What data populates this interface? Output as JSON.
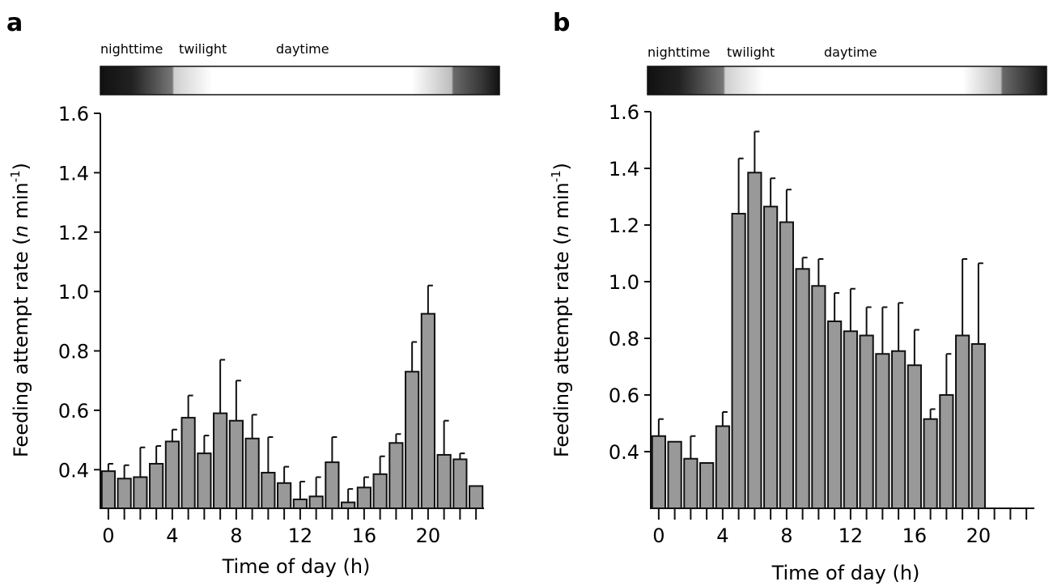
{
  "phases": [
    "nighttime",
    "twilight",
    "daytime"
  ],
  "chart_data": [
    {
      "type": "bar",
      "panel": "a",
      "xlabel": "Time of day (h)",
      "ylabel": "Feeding attempt rate (n min-1)",
      "ylabel_parts": {
        "pre": "Feeding attempt rate (",
        "italic": "n",
        "mid": " min",
        "sup": "-1",
        "post": ")"
      },
      "ylim": [
        0.27,
        1.6
      ],
      "yticks": [
        "0.4",
        "0.6",
        "0.8",
        "1.0",
        "1.2",
        "1.4",
        "1.6"
      ],
      "xticks": [
        "0",
        "4",
        "8",
        "12",
        "16",
        "20"
      ],
      "hours": [
        0,
        1,
        2,
        3,
        4,
        5,
        6,
        7,
        8,
        9,
        10,
        11,
        12,
        13,
        14,
        15,
        16,
        17,
        18,
        19,
        20,
        21,
        22,
        23
      ],
      "values": [
        0.395,
        0.37,
        0.375,
        0.42,
        0.495,
        0.575,
        0.455,
        0.59,
        0.565,
        0.505,
        0.39,
        0.355,
        0.3,
        0.31,
        0.425,
        0.29,
        0.34,
        0.385,
        0.49,
        0.73,
        0.925,
        0.45,
        0.435,
        0.345
      ],
      "errors": [
        0.025,
        0.045,
        0.1,
        0.06,
        0.04,
        0.075,
        0.06,
        0.18,
        0.135,
        0.08,
        0.12,
        0.055,
        0.06,
        0.065,
        0.085,
        0.045,
        0.035,
        0.06,
        0.03,
        0.1,
        0.095,
        0.115,
        0.02,
        0.0
      ]
    },
    {
      "type": "bar",
      "panel": "b",
      "xlabel": "Time of day (h)",
      "ylabel": "Feeding attempt rate (n min-1)",
      "ylabel_parts": {
        "pre": "Feeding attempt rate (",
        "italic": "n",
        "mid": " min",
        "sup": "-1",
        "post": ")"
      },
      "ylim": [
        0.2,
        1.6
      ],
      "yticks": [
        "0.4",
        "0.6",
        "0.8",
        "1.0",
        "1.2",
        "1.4",
        "1.6"
      ],
      "xticks": [
        "0",
        "4",
        "8",
        "12",
        "16",
        "20"
      ],
      "hours": [
        0,
        1,
        2,
        3,
        4,
        5,
        6,
        7,
        8,
        9,
        10,
        11,
        12,
        13,
        14,
        15,
        16,
        17,
        18,
        19,
        20,
        21,
        22,
        23
      ],
      "values": [
        0.455,
        0.435,
        0.375,
        0.36,
        0.49,
        1.24,
        1.385,
        1.265,
        1.21,
        1.045,
        0.985,
        0.86,
        0.825,
        0.81,
        0.745,
        0.755,
        0.705,
        0.515,
        0.6,
        0.81,
        0.78,
        null,
        null,
        null
      ],
      "errors": [
        0.06,
        0.0,
        0.08,
        0.0,
        0.05,
        0.195,
        0.145,
        0.1,
        0.115,
        0.04,
        0.095,
        0.1,
        0.15,
        0.1,
        0.165,
        0.17,
        0.125,
        0.035,
        0.145,
        0.27,
        0.285,
        null,
        null,
        null
      ]
    }
  ]
}
